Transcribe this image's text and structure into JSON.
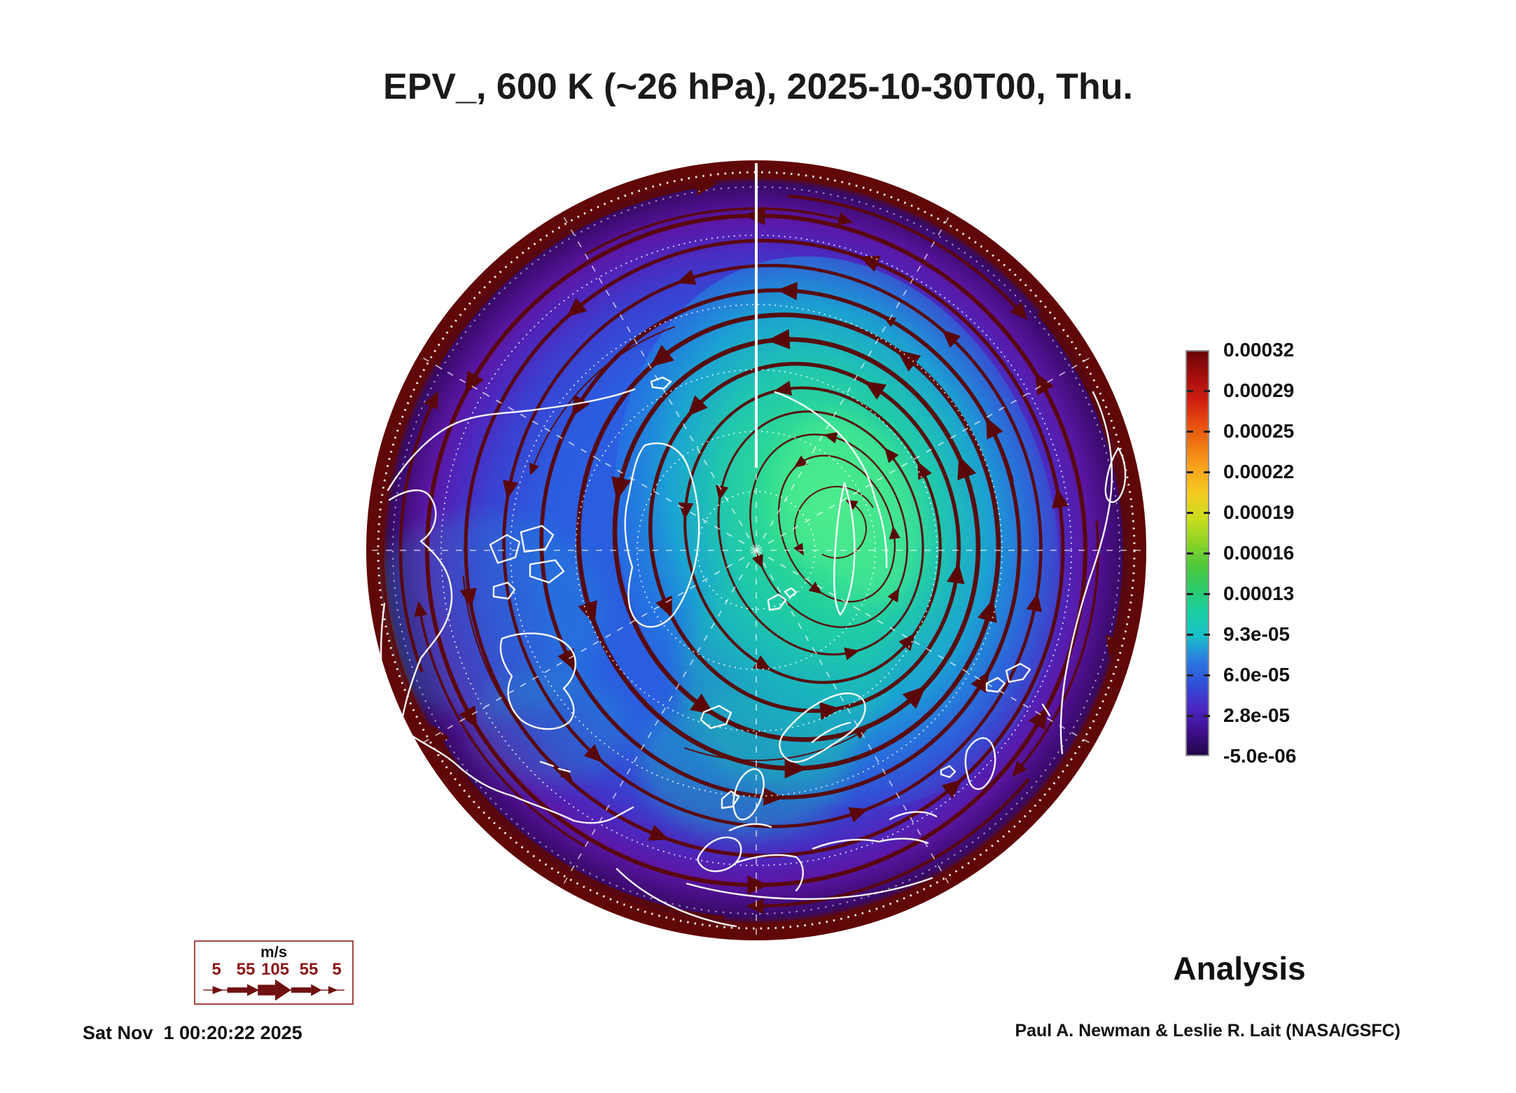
{
  "title": "EPV_, 600 K (~26 hPa), 2025-10-30T00, Thu.",
  "labels": {
    "analysis": "Analysis",
    "credit": "Paul A. Newman & Leslie R. Lait (NASA/GSFC)",
    "generated_timestamp": "Sat Nov  1 00:20:22 2025"
  },
  "colorbar": {
    "tick_labels": [
      "0.00032",
      "0.00029",
      "0.00025",
      "0.00022",
      "0.00019",
      "0.00016",
      "0.00013",
      "9.3e-05",
      "6.0e-05",
      "2.8e-05",
      "-5.0e-06"
    ],
    "gradient_stops_top_to_bottom": [
      "#6b0505",
      "#a30e0e",
      "#cd1c10",
      "#e64a10",
      "#f07b12",
      "#f8a81e",
      "#f3cb21",
      "#cddd1e",
      "#8fd426",
      "#4fc93b",
      "#2bcb6b",
      "#1bcfa4",
      "#18bfc9",
      "#2b7ae0",
      "#3050d8",
      "#4b28c4",
      "#3f0f8e",
      "#200648"
    ],
    "frame_color": "#8f8f8f"
  },
  "wind_legend": {
    "unit": "m/s",
    "speed_labels": [
      "5",
      "55",
      "105",
      "55",
      "5"
    ],
    "arrow_color": "#701010",
    "label_color": "#8b1616",
    "border_color": "#a54545"
  },
  "map": {
    "projection": "north-polar-stereographic",
    "colors": {
      "vortex_core": "#46e88a",
      "inner_field": "#1fccab",
      "mid_field": "#2663dd",
      "outer_band": "#5a17a6",
      "rim": "#600707",
      "streamline": "#5a0707",
      "coastline": "#ffffff",
      "graticule": "#ffffff"
    }
  },
  "chart_data": {
    "type": "heatmap",
    "title": "EPV_, 600 K (~26 hPa), 2025-10-30T00, Thu.",
    "colorbar_ticks": [
      0.00032,
      0.00029,
      0.00025,
      0.00022,
      0.00019,
      0.00016,
      0.00013,
      9.3e-05,
      6e-05,
      2.8e-05,
      -5e-06
    ],
    "colorbar_range": [
      -5e-06,
      0.00032
    ],
    "wind_speed_scale_ms": [
      5,
      55,
      105,
      55,
      5
    ],
    "legend_position": "right",
    "annotations": [
      "Analysis",
      "Paul A. Newman & Leslie R. Lait (NASA/GSFC)",
      "Sat Nov  1 00:20:22 2025"
    ]
  }
}
